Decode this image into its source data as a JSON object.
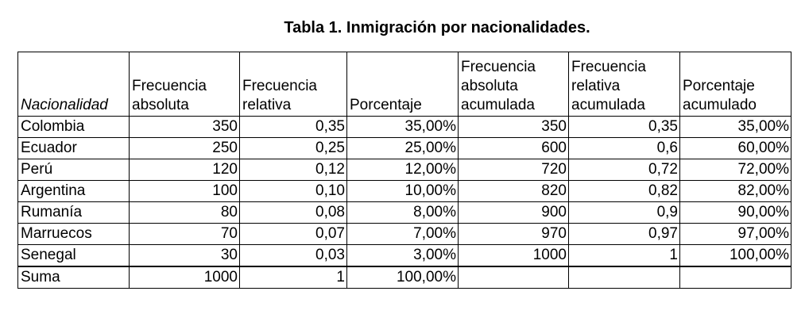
{
  "title": "Tabla 1. Inmigración por nacionalidades.",
  "headers": [
    "Nacionalidad",
    "Frecuencia absoluta",
    "Frecuencia relativa",
    "Porcentaje",
    "Frecuencia absoluta acumulada",
    "Frecuencia relativa acumulada",
    "Porcentaje acumulado"
  ],
  "rows": [
    [
      "Colombia",
      "350",
      "0,35",
      "35,00%",
      "350",
      "0,35",
      "35,00%"
    ],
    [
      "Ecuador",
      "250",
      "0,25",
      "25,00%",
      "600",
      "0,6",
      "60,00%"
    ],
    [
      "Perú",
      "120",
      "0,12",
      "12,00%",
      "720",
      "0,72",
      "72,00%"
    ],
    [
      "Argentina",
      "100",
      "0,10",
      "10,00%",
      "820",
      "0,82",
      "82,00%"
    ],
    [
      "Rumanía",
      "80",
      "0,08",
      "8,00%",
      "900",
      "0,9",
      "90,00%"
    ],
    [
      "Marruecos",
      "70",
      "0,07",
      "7,00%",
      "970",
      "0,97",
      "97,00%"
    ],
    [
      "Senegal",
      "30",
      "0,03",
      "3,00%",
      "1000",
      "1",
      "100,00%"
    ]
  ],
  "total": [
    "Suma",
    "1000",
    "1",
    "100,00%",
    "",
    "",
    ""
  ]
}
